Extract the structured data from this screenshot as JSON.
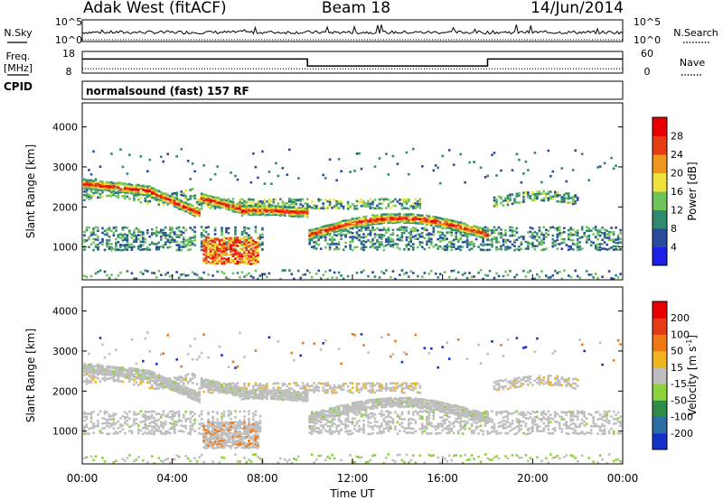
{
  "header": {
    "station": "Adak West (fitACF)",
    "beam": "Beam 18",
    "date": "14/Jun/2014"
  },
  "left_labels": {
    "nsky": "N.Sky",
    "freq": "Freq.",
    "mhz": "[MHz]",
    "cpid": "CPID"
  },
  "right_labels": {
    "nsearch": "N.Search",
    "nave": "Nave"
  },
  "cpid_text": "normalsound (fast) 157 RF",
  "chart_data": [
    {
      "type": "line",
      "name": "noise",
      "left_ticks": [
        "10^5",
        "10^0"
      ],
      "right_ticks": [
        "10^5",
        "10^0"
      ],
      "baseline_level": 0.35
    },
    {
      "type": "line",
      "name": "frequency",
      "left_ticks": [
        "18",
        "8"
      ],
      "right_ticks": [
        "60",
        "0"
      ],
      "ylim": [
        8,
        18
      ],
      "x": [
        0,
        10,
        10,
        18,
        18,
        24
      ],
      "freq_mhz": [
        14.5,
        14.5,
        11.3,
        11.3,
        14.5,
        14.5
      ],
      "nave_x": [
        0,
        10,
        10,
        18,
        18,
        24
      ],
      "nave": [
        12,
        12,
        12,
        12,
        12,
        12
      ]
    },
    {
      "type": "heatmap",
      "name": "power",
      "ylabel": "Slant Range [km]",
      "yticks": [
        1000,
        2000,
        3000,
        4000
      ],
      "ylim": [
        180,
        4600
      ],
      "xlim": [
        0,
        24
      ],
      "colorbar_label": "Power [dB]",
      "colorbar_ticks": [
        "28",
        "24",
        "20",
        "16",
        "12",
        "8",
        "4"
      ],
      "colors": [
        "#1e1ee6",
        "#2a4a9a",
        "#2f8a6e",
        "#6fc35a",
        "#f0e23c",
        "#f0961e",
        "#e63c14",
        "#e60000"
      ]
    },
    {
      "type": "heatmap",
      "name": "velocity",
      "ylabel": "Slant Range [km]",
      "yticks": [
        1000,
        2000,
        3000,
        4000
      ],
      "ylim": [
        180,
        4600
      ],
      "xlim": [
        0,
        24
      ],
      "colorbar_label": "Velocity [m s",
      "colorbar_sup": "-1",
      "colorbar_ticks": [
        "200",
        "100",
        "50",
        "15",
        "-15",
        "-50",
        "-100",
        "-200"
      ],
      "colors": [
        "#1432c8",
        "#2d6ea5",
        "#2d8c46",
        "#8cd23c",
        "#bebebe",
        "#f0b41e",
        "#f07814",
        "#e63c14",
        "#e60000"
      ],
      "xticks": [
        "00:00",
        "04:00",
        "08:00",
        "12:00",
        "16:00",
        "20:00",
        "00:00"
      ],
      "xlabel": "Time UT"
    }
  ]
}
